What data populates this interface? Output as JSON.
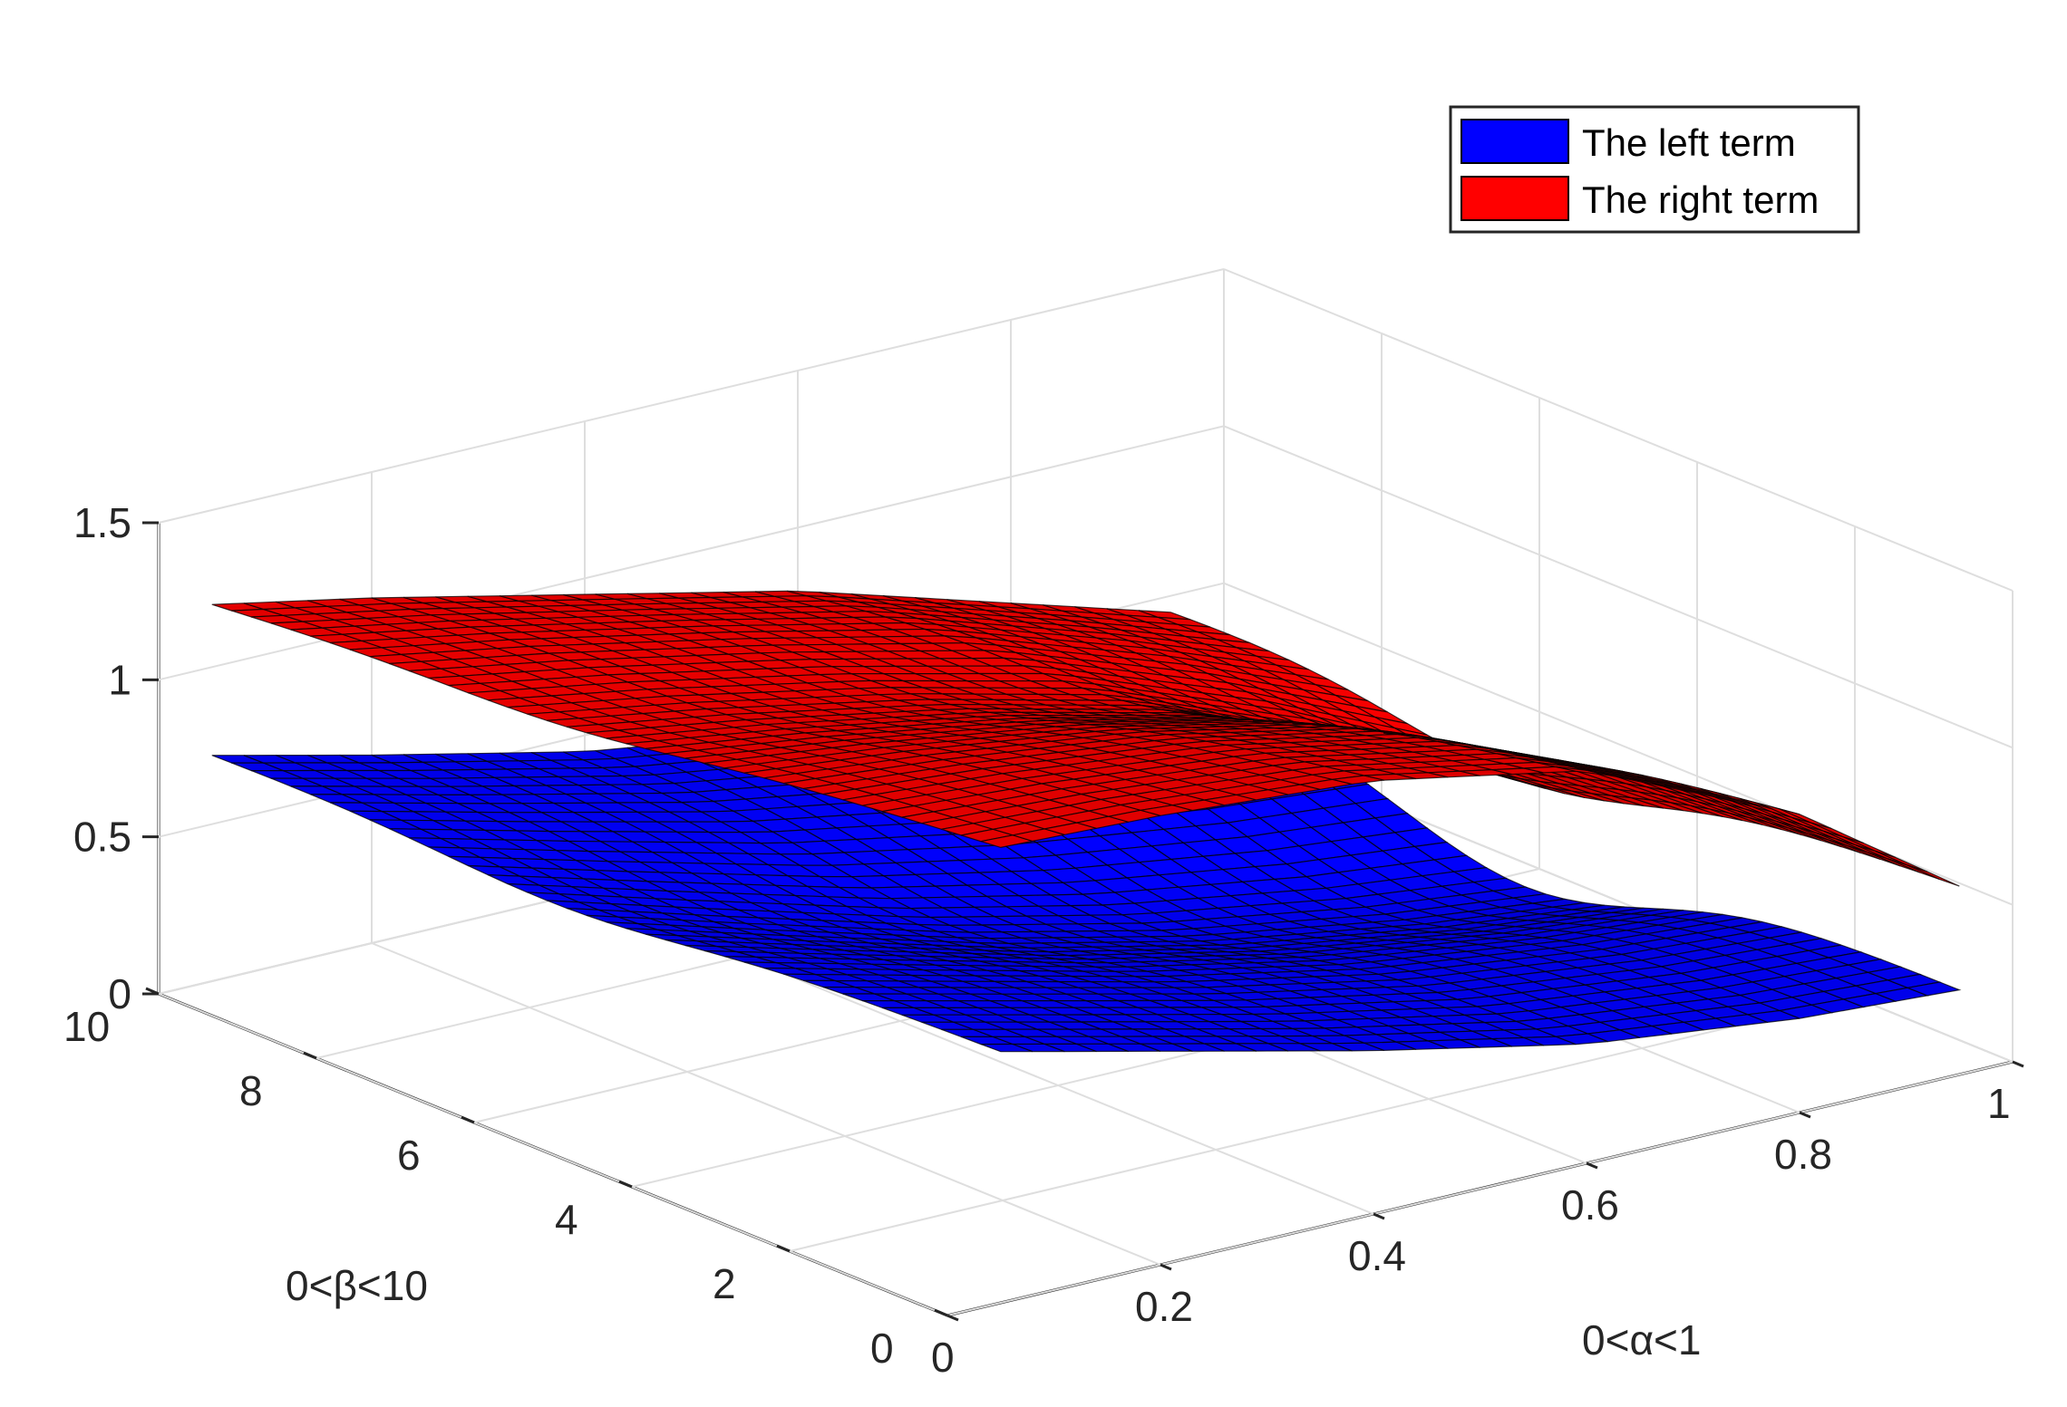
{
  "chart_data": {
    "type": "surface",
    "title": "",
    "xlabel": "0<α<1",
    "ylabel": "0<β<10",
    "zlabel": "",
    "xlim": [
      0,
      1
    ],
    "ylim": [
      0,
      10
    ],
    "zlim": [
      0,
      1.5
    ],
    "x_ticks": [
      "0",
      "0.2",
      "0.4",
      "0.6",
      "0.8",
      "1"
    ],
    "y_ticks": [
      "0",
      "2",
      "4",
      "6",
      "8",
      "10"
    ],
    "z_ticks": [
      "0",
      "0.5",
      "1",
      "1.5"
    ],
    "grid": true,
    "legend_position": "top-right",
    "x": [
      0.05,
      0.2,
      0.4,
      0.6,
      0.8,
      0.95
    ],
    "y": [
      0,
      2,
      4,
      6,
      8,
      10
    ],
    "series": [
      {
        "name": "The left term",
        "color": "#0000ff",
        "z_at_beta_10": [
          0.72,
          0.6,
          0.45,
          0.35,
          0.28,
          0.25
        ],
        "z_at_beta_0": [
          0.8,
          0.68,
          0.52,
          0.38,
          0.3,
          0.27
        ],
        "valley_depth": 0.18
      },
      {
        "name": "The right term",
        "color": "#ff0000",
        "z_at_beta_10": [
          1.2,
          1.1,
          0.95,
          0.8,
          0.6,
          0.45
        ],
        "z_at_beta_0": [
          1.45,
          1.43,
          1.38,
          1.25,
          0.95,
          0.6
        ],
        "valley_depth": 0.12
      }
    ]
  }
}
